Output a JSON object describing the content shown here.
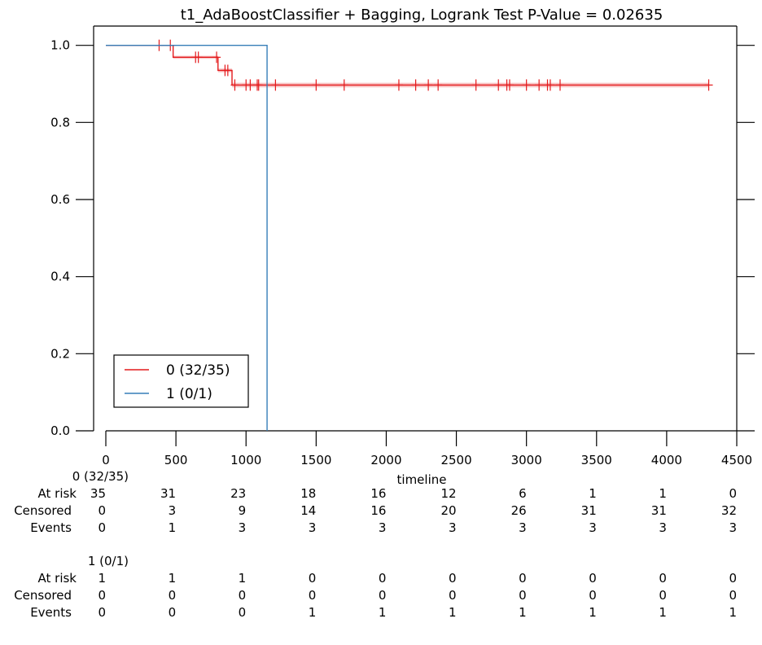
{
  "chart_data": {
    "type": "line",
    "title": "t1_AdaBoostClassifier + Bagging, Logrank Test P-Value = 0.02635",
    "xlabel": "timeline",
    "ylabel": "",
    "xlim": [
      0,
      4500
    ],
    "ylim": [
      0,
      1.05
    ],
    "x_ticks": [
      "0",
      "500",
      "1000",
      "1500",
      "2000",
      "2500",
      "3000",
      "3500",
      "4000",
      "4500"
    ],
    "y_ticks": [
      "0.0",
      "0.2",
      "0.4",
      "0.6",
      "0.8",
      "1.0"
    ],
    "grid": false,
    "legend_position": "bottom-left",
    "series": [
      {
        "name": "0 (32/35)",
        "color": "#e41a1c",
        "steps": [
          [
            0,
            1.0
          ],
          [
            480,
            0.969
          ],
          [
            800,
            0.935
          ],
          [
            900,
            0.897
          ],
          [
            4300,
            0.897
          ]
        ],
        "band": [
          [
            0,
            1.0,
            1.0
          ],
          [
            480,
            0.965,
            0.973
          ],
          [
            800,
            0.93,
            0.94
          ],
          [
            900,
            0.891,
            0.903
          ],
          [
            4300,
            0.891,
            0.903
          ]
        ],
        "censored": [
          [
            380,
            1.0
          ],
          [
            460,
            1.0
          ],
          [
            640,
            0.969
          ],
          [
            660,
            0.969
          ],
          [
            790,
            0.969
          ],
          [
            850,
            0.935
          ],
          [
            870,
            0.935
          ],
          [
            920,
            0.897
          ],
          [
            1000,
            0.897
          ],
          [
            1030,
            0.897
          ],
          [
            1080,
            0.897
          ],
          [
            1090,
            0.897
          ],
          [
            1210,
            0.897
          ],
          [
            1500,
            0.897
          ],
          [
            1700,
            0.897
          ],
          [
            2090,
            0.897
          ],
          [
            2210,
            0.897
          ],
          [
            2300,
            0.897
          ],
          [
            2370,
            0.897
          ],
          [
            2640,
            0.897
          ],
          [
            2800,
            0.897
          ],
          [
            2860,
            0.897
          ],
          [
            2880,
            0.897
          ],
          [
            3000,
            0.897
          ],
          [
            3090,
            0.897
          ],
          [
            3150,
            0.897
          ],
          [
            3170,
            0.897
          ],
          [
            3240,
            0.897
          ],
          [
            4300,
            0.897
          ]
        ]
      },
      {
        "name": "1 (0/1)",
        "color": "#377eb8",
        "steps": [
          [
            0,
            1.0
          ],
          [
            1150,
            0.0
          ]
        ],
        "censored": []
      }
    ],
    "at_risk_table": {
      "time_points": [
        0,
        500,
        1000,
        1500,
        2000,
        2500,
        3000,
        3500,
        4000,
        4500
      ],
      "groups": [
        {
          "name": "0 (32/35)",
          "rows": [
            {
              "label": "At risk",
              "values": [
                "35",
                "31",
                "23",
                "18",
                "16",
                "12",
                "6",
                "1",
                "1",
                "0"
              ]
            },
            {
              "label": "Censored",
              "values": [
                "0",
                "3",
                "9",
                "14",
                "16",
                "20",
                "26",
                "31",
                "31",
                "32"
              ]
            },
            {
              "label": "Events",
              "values": [
                "0",
                "1",
                "3",
                "3",
                "3",
                "3",
                "3",
                "3",
                "3",
                "3"
              ]
            }
          ]
        },
        {
          "name": "1 (0/1)",
          "rows": [
            {
              "label": "At risk",
              "values": [
                "1",
                "1",
                "1",
                "0",
                "0",
                "0",
                "0",
                "0",
                "0",
                "0"
              ]
            },
            {
              "label": "Censored",
              "values": [
                "0",
                "0",
                "0",
                "0",
                "0",
                "0",
                "0",
                "0",
                "0",
                "0"
              ]
            },
            {
              "label": "Events",
              "values": [
                "0",
                "0",
                "0",
                "1",
                "1",
                "1",
                "1",
                "1",
                "1",
                "1"
              ]
            }
          ]
        }
      ]
    }
  }
}
